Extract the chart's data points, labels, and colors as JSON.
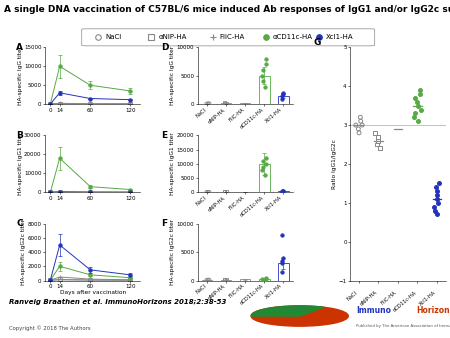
{
  "title": "A single DNA vaccination of C57BL/6 mice induced Ab responses of IgG1 and/or IgG2c subclass.",
  "legend_labels": [
    "NaCl",
    "αNIP-HA",
    "FliC-HA",
    "αCD11c-HA",
    "Xcl1-HA"
  ],
  "legend_colors": [
    "#888888",
    "#888888",
    "#888888",
    "#55aa44",
    "#2233bb"
  ],
  "legend_markers": [
    "o",
    "s",
    "+",
    "o",
    "o"
  ],
  "timepoints": [
    0,
    14,
    60,
    120
  ],
  "panel_A": {
    "label": "A",
    "ylabel": "HA-specific IgG titer",
    "lines": [
      {
        "color": "#888888",
        "marker": "o",
        "values": [
          50,
          100,
          60,
          80
        ],
        "err": [
          0,
          0,
          0,
          0
        ]
      },
      {
        "color": "#888888",
        "marker": "s",
        "values": [
          50,
          150,
          80,
          60
        ],
        "err": [
          0,
          0,
          0,
          0
        ]
      },
      {
        "color": "#888888",
        "marker": "+",
        "values": [
          50,
          250,
          100,
          70
        ],
        "err": [
          0,
          0,
          0,
          0
        ]
      },
      {
        "color": "#55aa44",
        "marker": "o",
        "values": [
          50,
          10000,
          5000,
          3500
        ],
        "err": [
          0,
          3000,
          1000,
          800
        ]
      },
      {
        "color": "#2233bb",
        "marker": "o",
        "values": [
          50,
          3000,
          1500,
          1200
        ],
        "err": [
          0,
          500,
          200,
          150
        ]
      }
    ],
    "ylim": [
      0,
      15000
    ],
    "yticks": [
      0,
      5000,
      10000,
      15000
    ]
  },
  "panel_B": {
    "label": "B",
    "ylabel": "HA-specific IgG1 titer",
    "lines": [
      {
        "color": "#888888",
        "marker": "o",
        "values": [
          50,
          100,
          60,
          50
        ],
        "err": [
          0,
          0,
          0,
          0
        ]
      },
      {
        "color": "#888888",
        "marker": "s",
        "values": [
          50,
          150,
          80,
          60
        ],
        "err": [
          0,
          0,
          0,
          0
        ]
      },
      {
        "color": "#888888",
        "marker": "+",
        "values": [
          50,
          250,
          100,
          70
        ],
        "err": [
          0,
          0,
          0,
          0
        ]
      },
      {
        "color": "#55aa44",
        "marker": "o",
        "values": [
          50,
          18000,
          3000,
          1500
        ],
        "err": [
          0,
          6000,
          800,
          400
        ]
      },
      {
        "color": "#2233bb",
        "marker": "o",
        "values": [
          50,
          200,
          80,
          60
        ],
        "err": [
          0,
          0,
          0,
          0
        ]
      }
    ],
    "ylim": [
      0,
      30000
    ],
    "yticks": [
      0,
      10000,
      20000,
      30000
    ]
  },
  "panel_C": {
    "label": "C",
    "ylabel": "HA-specific IgG2c titer",
    "xlabel": "Days after vaccination",
    "lines": [
      {
        "color": "#888888",
        "marker": "o",
        "values": [
          50,
          100,
          60,
          50
        ],
        "err": [
          0,
          0,
          0,
          0
        ]
      },
      {
        "color": "#888888",
        "marker": "s",
        "values": [
          50,
          150,
          80,
          60
        ],
        "err": [
          0,
          0,
          0,
          0
        ]
      },
      {
        "color": "#888888",
        "marker": "+",
        "values": [
          50,
          500,
          200,
          100
        ],
        "err": [
          0,
          0,
          0,
          0
        ]
      },
      {
        "color": "#55aa44",
        "marker": "o",
        "values": [
          50,
          2000,
          800,
          400
        ],
        "err": [
          0,
          600,
          200,
          100
        ]
      },
      {
        "color": "#2233bb",
        "marker": "o",
        "values": [
          50,
          5000,
          1500,
          800
        ],
        "err": [
          0,
          1500,
          400,
          200
        ]
      }
    ],
    "ylim": [
      0,
      8000
    ],
    "yticks": [
      0,
      2000,
      4000,
      6000,
      8000
    ]
  },
  "panel_D": {
    "label": "D",
    "ylabel": "HA-specific IgG titer",
    "cat_colors": [
      "#888888",
      "#888888",
      "#888888",
      "#55aa44",
      "#2233bb"
    ],
    "bar_values": [
      100,
      150,
      200,
      5000,
      1500
    ],
    "bar_errors": [
      20,
      40,
      60,
      1500,
      400
    ],
    "scatter_points": [
      [
        80,
        100,
        120
      ],
      [
        100,
        150,
        180
      ],
      [
        150,
        200,
        250
      ],
      [
        3000,
        5000,
        7000,
        8000,
        4000,
        6000
      ],
      [
        1000,
        1500,
        2000,
        1800
      ]
    ],
    "ylim": [
      0,
      10000
    ],
    "yticks": [
      0,
      5000,
      10000
    ]
  },
  "panel_E": {
    "label": "E",
    "ylabel": "HA-specific IgG1 titer",
    "cat_colors": [
      "#888888",
      "#888888",
      "#888888",
      "#55aa44",
      "#2233bb"
    ],
    "bar_values": [
      100,
      150,
      200,
      10000,
      500
    ],
    "bar_errors": [
      20,
      40,
      60,
      4000,
      150
    ],
    "scatter_points": [
      [
        80,
        100,
        120
      ],
      [
        100,
        150,
        180
      ],
      [
        150,
        200,
        250
      ],
      [
        6000,
        8000,
        10000,
        12000,
        9000,
        11000
      ],
      [
        300,
        500,
        600,
        400
      ]
    ],
    "ylim": [
      0,
      20000
    ],
    "yticks": [
      0,
      5000,
      10000,
      15000,
      20000
    ]
  },
  "panel_F": {
    "label": "F",
    "ylabel": "HA-specific IgG2c titer",
    "cat_colors": [
      "#888888",
      "#888888",
      "#888888",
      "#55aa44",
      "#2233bb"
    ],
    "bar_values": [
      100,
      150,
      200,
      300,
      3000
    ],
    "bar_errors": [
      20,
      40,
      60,
      80,
      1000
    ],
    "scatter_points": [
      [
        80,
        100,
        120
      ],
      [
        100,
        150,
        180
      ],
      [
        150,
        200,
        250
      ],
      [
        200,
        300,
        400,
        350
      ],
      [
        1500,
        3000,
        8000,
        3500,
        4000
      ]
    ],
    "ylim": [
      0,
      10000
    ],
    "yticks": [
      0,
      5000,
      10000
    ]
  },
  "panel_G": {
    "label": "G",
    "ylabel": "Ratio IgG1/IgG2c",
    "cat_colors": [
      "#888888",
      "#888888",
      "#888888",
      "#55aa44",
      "#2233bb"
    ],
    "scatter_points": [
      [
        3.0,
        3.1,
        2.9,
        3.2,
        3.0,
        2.8
      ],
      [
        2.6,
        2.8,
        2.5,
        2.7,
        2.4
      ],
      [
        2.9,
        3.1,
        2.8,
        3.0,
        2.7
      ],
      [
        3.3,
        3.6,
        3.8,
        3.2,
        3.5,
        3.4,
        3.7,
        3.1,
        3.9
      ],
      [
        0.9,
        1.2,
        1.5,
        1.0,
        1.3,
        0.8,
        1.1,
        1.4,
        0.7
      ]
    ],
    "medians": [
      3.0,
      2.6,
      2.9,
      3.5,
      1.1
    ],
    "ylim": [
      -1,
      5
    ],
    "yticks": [
      -1,
      0,
      1,
      2,
      3,
      4,
      5
    ]
  },
  "cat_abbrevs": [
    "NaCl",
    "αNIP-HA",
    "FliC-HA",
    "αCD11c-HA",
    "Xcl1-HA"
  ],
  "marker_styles": [
    "o",
    "s",
    "+",
    "o",
    "o"
  ],
  "citation": "Ranveig Braathen et al. ImmunoHorizons 2018;2:38-53",
  "copyright": "Copyright © 2018 The Authors",
  "bg_color": "#ffffff",
  "title_fontsize": 6.5,
  "label_fontsize": 4.2,
  "tick_fontsize": 4.0,
  "legend_fontsize": 5.0
}
